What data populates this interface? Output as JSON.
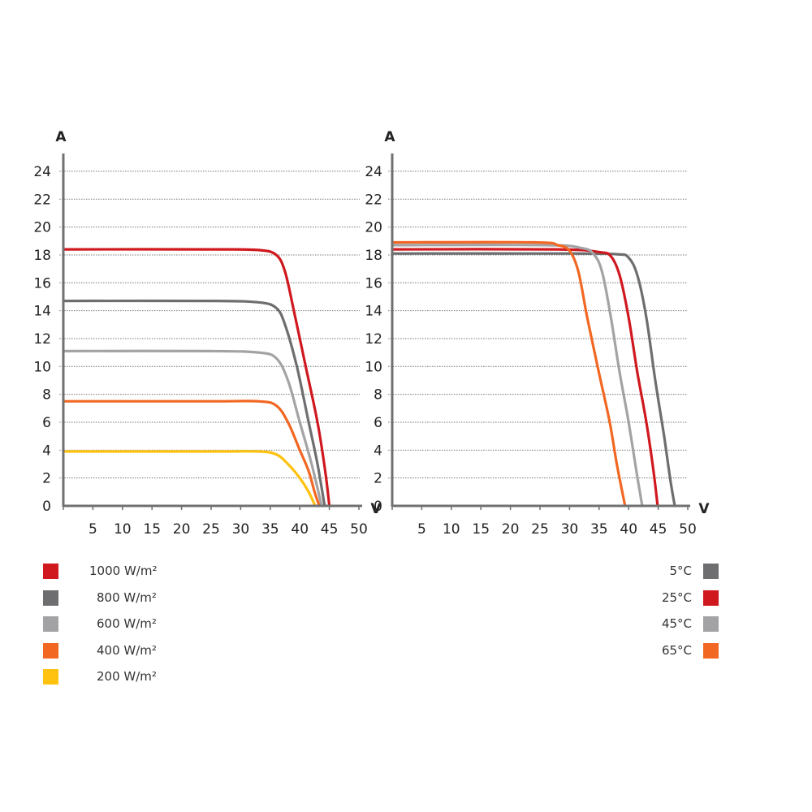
{
  "chart_data": [
    {
      "type": "line",
      "title": "",
      "xlabel": "V",
      "ylabel": "A",
      "xlim": [
        0,
        50
      ],
      "ylim": [
        0,
        24
      ],
      "xticks": [
        5,
        10,
        15,
        20,
        25,
        30,
        35,
        40,
        45,
        50
      ],
      "yticks": [
        0,
        2,
        4,
        6,
        8,
        10,
        12,
        14,
        16,
        18,
        20,
        22,
        24
      ],
      "grid": "horizontal dotted",
      "legend_position": "bottom-left",
      "series": [
        {
          "name": "1000 W/m²",
          "color": "#d0181f",
          "x": [
            0,
            25,
            33,
            36,
            37.5,
            39,
            41,
            43,
            44.3,
            45
          ],
          "y": [
            18.4,
            18.4,
            18.35,
            18.0,
            16.8,
            14.0,
            10.0,
            6.0,
            2.5,
            0
          ]
        },
        {
          "name": "800 W/m²",
          "color": "#6e6e71",
          "x": [
            0,
            25,
            33,
            36,
            37.5,
            39.5,
            41.5,
            43,
            44.2
          ],
          "y": [
            14.7,
            14.7,
            14.6,
            14.2,
            13.0,
            10.0,
            6.0,
            3.0,
            0
          ]
        },
        {
          "name": "600 W/m²",
          "color": "#a3a3a5",
          "x": [
            0,
            25,
            33,
            36,
            38,
            40,
            42,
            43.7
          ],
          "y": [
            11.1,
            11.1,
            11.0,
            10.6,
            9.0,
            6.0,
            3.0,
            0
          ]
        },
        {
          "name": "400 W/m²",
          "color": "#f26722",
          "x": [
            0,
            25,
            33,
            36,
            38,
            40,
            41.5,
            42.5,
            43.3
          ],
          "y": [
            7.5,
            7.5,
            7.5,
            7.2,
            6.0,
            4.0,
            2.5,
            1.0,
            0
          ]
        },
        {
          "name": "200 W/m²",
          "color": "#ffc20e",
          "x": [
            0,
            25,
            33,
            36,
            38,
            40,
            41.5,
            42.6
          ],
          "y": [
            3.9,
            3.9,
            3.9,
            3.7,
            3.0,
            2.0,
            1.0,
            0
          ]
        }
      ]
    },
    {
      "type": "line",
      "title": "",
      "xlabel": "V",
      "ylabel": "A",
      "xlim": [
        0,
        50
      ],
      "ylim": [
        0,
        24
      ],
      "xticks": [
        5,
        10,
        15,
        20,
        25,
        30,
        35,
        40,
        45,
        50
      ],
      "yticks": [
        0,
        2,
        4,
        6,
        8,
        10,
        12,
        14,
        16,
        18,
        20,
        22,
        24
      ],
      "grid": "horizontal dotted",
      "legend_position": "bottom-right",
      "series": [
        {
          "name": "5°C",
          "color": "#6e6e71",
          "x": [
            0,
            30,
            38,
            40,
            41.5,
            43,
            44.5,
            46,
            47,
            47.8
          ],
          "y": [
            18.1,
            18.1,
            18.05,
            17.8,
            16.5,
            13.5,
            9.0,
            5.0,
            2.0,
            0
          ]
        },
        {
          "name": "25°C",
          "color": "#d0181f",
          "x": [
            0,
            28,
            35,
            37,
            38.5,
            40,
            41.5,
            43,
            44.2,
            44.9
          ],
          "y": [
            18.4,
            18.4,
            18.2,
            17.9,
            16.5,
            13.5,
            9.5,
            6.0,
            2.5,
            0
          ]
        },
        {
          "name": "45°C",
          "color": "#a3a3a5",
          "x": [
            0,
            26,
            32,
            34,
            35.5,
            37,
            38.5,
            40,
            41.5,
            42.3
          ],
          "y": [
            18.7,
            18.7,
            18.5,
            18.1,
            16.8,
            13.5,
            9.5,
            6.0,
            2.0,
            0
          ]
        },
        {
          "name": "65°C",
          "color": "#f26722",
          "x": [
            0,
            24,
            28,
            30,
            31.5,
            33,
            35,
            36.8,
            38,
            39.4
          ],
          "y": [
            18.9,
            18.9,
            18.7,
            18.3,
            16.8,
            13.5,
            9.5,
            6.0,
            3.0,
            0
          ]
        }
      ]
    }
  ],
  "left_chart": {
    "y_axis_label": "A",
    "x_axis_label": "V",
    "y_ticks": [
      "24",
      "22",
      "20",
      "18",
      "16",
      "14",
      "12",
      "10",
      "8",
      "6",
      "4",
      "2",
      "0"
    ],
    "x_ticks": [
      "5",
      "10",
      "15",
      "20",
      "25",
      "30",
      "35",
      "40",
      "45",
      "50"
    ],
    "legend": [
      {
        "label": "1000 W/m²",
        "color": "#d0181f"
      },
      {
        "label": "800 W/m²",
        "color": "#6e6e71"
      },
      {
        "label": "600 W/m²",
        "color": "#a3a3a5"
      },
      {
        "label": "400 W/m²",
        "color": "#f26722"
      },
      {
        "label": "200 W/m²",
        "color": "#ffc20e"
      }
    ]
  },
  "right_chart": {
    "y_axis_label": "A",
    "x_axis_label": "V",
    "y_ticks": [
      "24",
      "22",
      "20",
      "18",
      "16",
      "14",
      "12",
      "10",
      "8",
      "6",
      "4",
      "2",
      "0"
    ],
    "x_ticks": [
      "5",
      "10",
      "15",
      "20",
      "25",
      "30",
      "35",
      "40",
      "45",
      "50"
    ],
    "legend": [
      {
        "label": "5°C",
        "color": "#6e6e71"
      },
      {
        "label": "25°C",
        "color": "#d0181f"
      },
      {
        "label": "45°C",
        "color": "#a3a3a5"
      },
      {
        "label": "65°C",
        "color": "#f26722"
      }
    ]
  }
}
